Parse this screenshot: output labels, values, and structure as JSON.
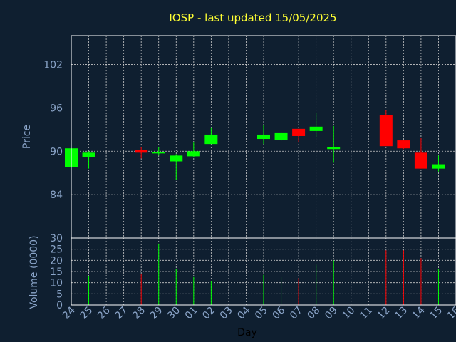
{
  "title": "IOSP - last updated 15/05/2025",
  "colors": {
    "background": "#0f1f30",
    "title": "#ffff33",
    "axis_text": "#8aa4c8",
    "frame": "#ffffff",
    "grid": "#c8c8c8",
    "up": "#00ff00",
    "down": "#ff0000",
    "xlabel": "#000000"
  },
  "chart_data": [
    {
      "type": "candlestick",
      "title": "IOSP - last updated 15/05/2025",
      "ylabel": "Price",
      "ylim": [
        78,
        106
      ],
      "yticks": [
        84,
        90,
        96,
        102
      ],
      "grid": true,
      "x": [
        "24",
        "25",
        "26",
        "27",
        "28",
        "29",
        "30",
        "01",
        "02",
        "03",
        "04",
        "05",
        "06",
        "07",
        "08",
        "09",
        "10",
        "11",
        "12",
        "13",
        "14",
        "15",
        "16"
      ],
      "candles": [
        {
          "x": "24",
          "open": 87.8,
          "high": 90.4,
          "low": 87.8,
          "close": 90.4
        },
        {
          "x": "25",
          "open": 89.2,
          "high": 90.0,
          "low": 87.6,
          "close": 89.8
        },
        {
          "x": "28",
          "open": 90.2,
          "high": 90.6,
          "low": 89.0,
          "close": 89.8
        },
        {
          "x": "29",
          "open": 89.7,
          "high": 90.6,
          "low": 89.4,
          "close": 89.9
        },
        {
          "x": "30",
          "open": 88.6,
          "high": 89.6,
          "low": 86.0,
          "close": 89.4
        },
        {
          "x": "01",
          "open": 89.3,
          "high": 91.2,
          "low": 89.2,
          "close": 90.0
        },
        {
          "x": "02",
          "open": 91.0,
          "high": 93.3,
          "low": 91.0,
          "close": 92.3
        },
        {
          "x": "05",
          "open": 91.7,
          "high": 93.6,
          "low": 91.0,
          "close": 92.3
        },
        {
          "x": "06",
          "open": 91.6,
          "high": 92.7,
          "low": 91.4,
          "close": 92.6
        },
        {
          "x": "07",
          "open": 93.1,
          "high": 93.1,
          "low": 91.2,
          "close": 92.1
        },
        {
          "x": "08",
          "open": 92.8,
          "high": 95.3,
          "low": 92.0,
          "close": 93.4
        },
        {
          "x": "09",
          "open": 90.3,
          "high": 93.5,
          "low": 88.4,
          "close": 90.6
        },
        {
          "x": "12",
          "open": 95.0,
          "high": 95.7,
          "low": 90.7,
          "close": 90.7
        },
        {
          "x": "13",
          "open": 91.5,
          "high": 91.6,
          "low": 90.3,
          "close": 90.4
        },
        {
          "x": "14",
          "open": 89.8,
          "high": 91.9,
          "low": 87.6,
          "close": 87.6
        },
        {
          "x": "15",
          "open": 87.6,
          "high": 89.4,
          "low": 87.2,
          "close": 88.2
        }
      ]
    },
    {
      "type": "bar",
      "ylabel": "Volume (0000)",
      "xlabel": "Day",
      "ylim": [
        0,
        30
      ],
      "yticks": [
        0,
        5,
        10,
        15,
        20,
        25,
        30
      ],
      "grid": true,
      "bars": [
        {
          "x": "25",
          "value": 13,
          "direction": "up"
        },
        {
          "x": "28",
          "value": 14,
          "direction": "down"
        },
        {
          "x": "29",
          "value": 27.5,
          "direction": "up"
        },
        {
          "x": "30",
          "value": 16,
          "direction": "up"
        },
        {
          "x": "01",
          "value": 12.5,
          "direction": "up"
        },
        {
          "x": "02",
          "value": 10.5,
          "direction": "up"
        },
        {
          "x": "05",
          "value": 13.5,
          "direction": "up"
        },
        {
          "x": "06",
          "value": 12.5,
          "direction": "up"
        },
        {
          "x": "07",
          "value": 12,
          "direction": "down"
        },
        {
          "x": "08",
          "value": 18,
          "direction": "up"
        },
        {
          "x": "09",
          "value": 20,
          "direction": "up"
        },
        {
          "x": "12",
          "value": 24.5,
          "direction": "down"
        },
        {
          "x": "13",
          "value": 24.5,
          "direction": "down"
        },
        {
          "x": "14",
          "value": 21,
          "direction": "down"
        },
        {
          "x": "15",
          "value": 16,
          "direction": "up"
        }
      ]
    }
  ]
}
